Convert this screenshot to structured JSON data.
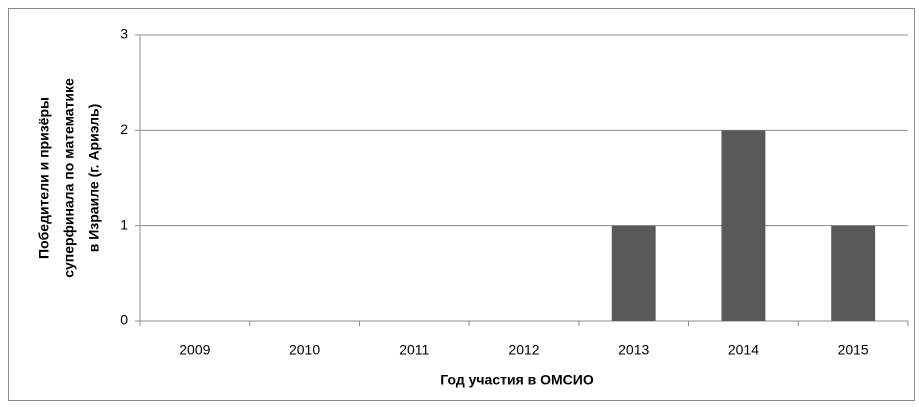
{
  "chart_data": {
    "type": "bar",
    "categories": [
      "2009",
      "2010",
      "2011",
      "2012",
      "2013",
      "2014",
      "2015"
    ],
    "values": [
      0,
      0,
      0,
      0,
      1,
      2,
      1
    ],
    "color": "#595959",
    "ylim": [
      0,
      3
    ],
    "yticks": [
      0,
      1,
      2,
      3
    ],
    "grid": true,
    "x_label": "Год участия в ОМСИО",
    "y_label": [
      "Победители и призёры",
      "суперфинала  по математике",
      "в  Израиле  (г. Ариэль)"
    ]
  }
}
